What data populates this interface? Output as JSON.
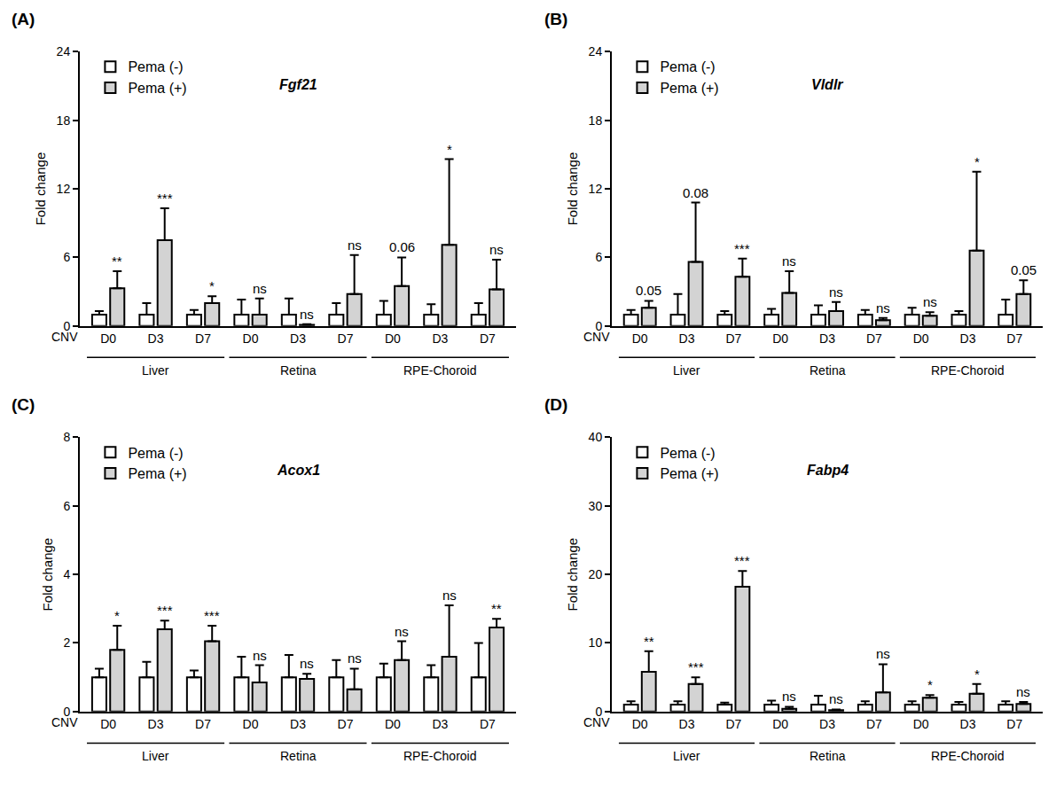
{
  "chart_data": [
    {
      "type": "bar",
      "panel_label": "(A)",
      "title": "Fgf21",
      "xlabel": "CNV",
      "ylabel": "Fold change",
      "categories": [
        "D0",
        "D3",
        "D7",
        "D0",
        "D3",
        "D7",
        "D0",
        "D3",
        "D7"
      ],
      "groups": [
        "Liver",
        "Liver",
        "Liver",
        "Retina",
        "Retina",
        "Retina",
        "RPE-Choroid",
        "RPE-Choroid",
        "RPE-Choroid"
      ],
      "series": [
        {
          "name": "Pema (-)",
          "color": "#ffffff",
          "values": [
            1.0,
            1.0,
            1.0,
            1.0,
            1.0,
            1.0,
            1.0,
            1.0,
            1.0
          ],
          "errors": [
            0.3,
            1.0,
            0.4,
            1.3,
            1.4,
            1.0,
            1.2,
            0.9,
            1.0
          ]
        },
        {
          "name": "Pema (+)",
          "color": "#d3d3d3",
          "values": [
            3.3,
            7.5,
            2.0,
            1.0,
            0.1,
            2.8,
            3.5,
            7.1,
            3.2
          ],
          "errors": [
            1.5,
            2.8,
            0.6,
            1.4,
            0.05,
            3.4,
            2.5,
            7.5,
            2.6
          ],
          "annotations": [
            "**",
            "***",
            "*",
            "ns",
            "ns",
            "ns",
            "0.06",
            "*",
            "ns"
          ]
        }
      ],
      "ylim": [
        0,
        24
      ],
      "yticks": [
        0,
        6,
        12,
        18,
        24
      ],
      "grid": false,
      "legend": "top left"
    },
    {
      "type": "bar",
      "panel_label": "(B)",
      "title": "Vldlr",
      "xlabel": "CNV",
      "ylabel": "Fold change",
      "categories": [
        "D0",
        "D3",
        "D7",
        "D0",
        "D3",
        "D7",
        "D0",
        "D3",
        "D7"
      ],
      "groups": [
        "Liver",
        "Liver",
        "Liver",
        "Retina",
        "Retina",
        "Retina",
        "RPE-Choroid",
        "RPE-Choroid",
        "RPE-Choroid"
      ],
      "series": [
        {
          "name": "Pema (-)",
          "color": "#ffffff",
          "values": [
            1.0,
            1.0,
            1.0,
            1.0,
            1.0,
            1.0,
            1.0,
            1.0,
            1.0
          ],
          "errors": [
            0.4,
            1.8,
            0.3,
            0.5,
            0.8,
            0.4,
            0.6,
            0.3,
            1.3
          ]
        },
        {
          "name": "Pema (+)",
          "color": "#d3d3d3",
          "values": [
            1.6,
            5.6,
            4.3,
            2.9,
            1.3,
            0.5,
            0.9,
            6.6,
            2.8
          ],
          "errors": [
            0.6,
            5.2,
            1.6,
            1.9,
            0.8,
            0.2,
            0.3,
            6.9,
            1.2
          ],
          "annotations": [
            "0.05",
            "0.08",
            "***",
            "ns",
            "ns",
            "ns",
            "ns",
            "*",
            "0.05"
          ]
        }
      ],
      "ylim": [
        0,
        24
      ],
      "yticks": [
        0,
        6,
        12,
        18,
        24
      ],
      "grid": false,
      "legend": "top left"
    },
    {
      "type": "bar",
      "panel_label": "(C)",
      "title": "Acox1",
      "xlabel": "CNV",
      "ylabel": "Fold change",
      "categories": [
        "D0",
        "D3",
        "D7",
        "D0",
        "D3",
        "D7",
        "D0",
        "D3",
        "D7"
      ],
      "groups": [
        "Liver",
        "Liver",
        "Liver",
        "Retina",
        "Retina",
        "Retina",
        "RPE-Choroid",
        "RPE-Choroid",
        "RPE-Choroid"
      ],
      "series": [
        {
          "name": "Pema (-)",
          "color": "#ffffff",
          "values": [
            1.0,
            1.0,
            1.0,
            1.0,
            1.0,
            1.0,
            1.0,
            1.0,
            1.0
          ],
          "errors": [
            0.25,
            0.45,
            0.2,
            0.6,
            0.65,
            0.5,
            0.4,
            0.35,
            1.0
          ]
        },
        {
          "name": "Pema (+)",
          "color": "#d3d3d3",
          "values": [
            1.8,
            2.4,
            2.05,
            0.85,
            0.95,
            0.65,
            1.5,
            1.6,
            2.45
          ],
          "errors": [
            0.7,
            0.25,
            0.45,
            0.5,
            0.15,
            0.6,
            0.55,
            1.5,
            0.25
          ],
          "annotations": [
            "*",
            "***",
            "***",
            "ns",
            "ns",
            "ns",
            "ns",
            "ns",
            "**"
          ]
        }
      ],
      "ylim": [
        0,
        8
      ],
      "yticks": [
        0,
        2,
        4,
        6,
        8
      ],
      "grid": false,
      "legend": "top left"
    },
    {
      "type": "bar",
      "panel_label": "(D)",
      "title": "Fabp4",
      "xlabel": "CNV",
      "ylabel": "Fold change",
      "categories": [
        "D0",
        "D3",
        "D7",
        "D0",
        "D3",
        "D7",
        "D0",
        "D3",
        "D7"
      ],
      "groups": [
        "Liver",
        "Liver",
        "Liver",
        "Retina",
        "Retina",
        "Retina",
        "RPE-Choroid",
        "RPE-Choroid",
        "RPE-Choroid"
      ],
      "series": [
        {
          "name": "Pema (-)",
          "color": "#ffffff",
          "values": [
            1.0,
            1.0,
            1.0,
            1.0,
            1.0,
            1.0,
            1.0,
            1.0,
            1.0
          ],
          "errors": [
            0.5,
            0.5,
            0.3,
            0.6,
            1.3,
            0.5,
            0.5,
            0.4,
            0.5
          ]
        },
        {
          "name": "Pema (+)",
          "color": "#d3d3d3",
          "values": [
            5.8,
            4.0,
            18.2,
            0.4,
            0.2,
            2.8,
            2.0,
            2.6,
            1.1
          ],
          "errors": [
            3.0,
            1.0,
            2.3,
            0.3,
            0.1,
            4.1,
            0.4,
            1.4,
            0.3
          ],
          "annotations": [
            "**",
            "***",
            "***",
            "ns",
            "ns",
            "ns",
            "*",
            "*",
            "ns"
          ]
        }
      ],
      "ylim": [
        0,
        40
      ],
      "yticks": [
        0,
        10,
        20,
        30,
        40
      ],
      "grid": false,
      "legend": "top left"
    }
  ]
}
